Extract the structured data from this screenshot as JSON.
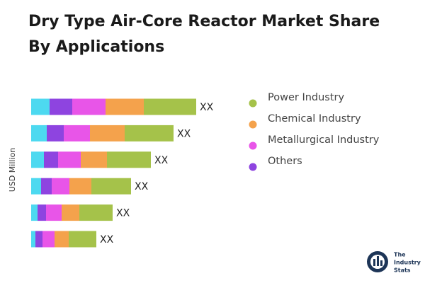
{
  "chart_data": {
    "type": "stacked-bar-horizontal",
    "title": [
      "Dry Type Air-Core Reactor Market Share",
      "By Applications"
    ],
    "y_label": "USD Million",
    "categories": [
      null,
      null,
      null,
      null,
      null,
      null
    ],
    "series": [
      {
        "color": "#4dd9f0",
        "values": [
          26,
          22,
          18,
          14,
          9,
          6
        ]
      },
      {
        "name": "Others",
        "color": "#8e44e0",
        "values": [
          32,
          24,
          20,
          15,
          12,
          10
        ]
      },
      {
        "name": "Metallurgical Industry",
        "color": "#e855e8",
        "values": [
          47,
          37,
          32,
          25,
          22,
          17
        ]
      },
      {
        "name": "Chemical Industry",
        "color": "#f4a24c",
        "values": [
          54,
          49,
          37,
          31,
          25,
          20
        ]
      },
      {
        "name": "Power Industry",
        "color": "#a5c24a",
        "values": [
          74,
          69,
          62,
          56,
          47,
          39
        ]
      }
    ],
    "bar_labels": [
      "XX",
      "XX",
      "XX",
      "XX",
      "XX",
      "XX"
    ],
    "legend": "right"
  },
  "logo": [
    "The",
    "Industry",
    "Stats"
  ]
}
